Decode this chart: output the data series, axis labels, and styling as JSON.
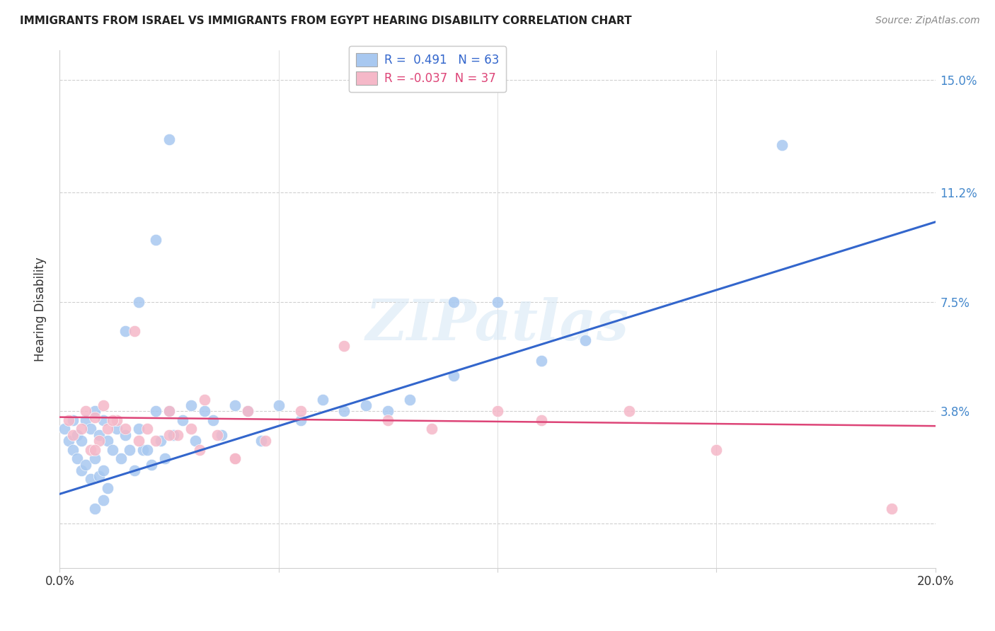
{
  "title": "IMMIGRANTS FROM ISRAEL VS IMMIGRANTS FROM EGYPT HEARING DISABILITY CORRELATION CHART",
  "source": "Source: ZipAtlas.com",
  "ylabel": "Hearing Disability",
  "xlim": [
    0.0,
    0.2
  ],
  "ylim": [
    -0.015,
    0.16
  ],
  "ytick_vals": [
    0.0,
    0.038,
    0.075,
    0.112,
    0.15
  ],
  "ytick_labels": [
    "",
    "3.8%",
    "7.5%",
    "11.2%",
    "15.0%"
  ],
  "xtick_vals": [
    0.0,
    0.05,
    0.1,
    0.15,
    0.2
  ],
  "xtick_labels": [
    "0.0%",
    "",
    "",
    "",
    "20.0%"
  ],
  "israel_R": 0.491,
  "israel_N": 63,
  "egypt_R": -0.037,
  "egypt_N": 37,
  "israel_color": "#a8c8f0",
  "egypt_color": "#f5b8c8",
  "israel_line_color": "#3366cc",
  "egypt_line_color": "#dd4477",
  "background_color": "#ffffff",
  "grid_color": "#d0d0d0",
  "watermark": "ZIPatlas",
  "israel_line_x0": 0.0,
  "israel_line_y0": 0.01,
  "israel_line_x1": 0.2,
  "israel_line_y1": 0.102,
  "egypt_line_x0": 0.0,
  "egypt_line_y0": 0.036,
  "egypt_line_x1": 0.2,
  "egypt_line_y1": 0.033,
  "israel_scatter_x": [
    0.001,
    0.002,
    0.003,
    0.003,
    0.004,
    0.004,
    0.005,
    0.005,
    0.006,
    0.006,
    0.007,
    0.007,
    0.008,
    0.008,
    0.009,
    0.009,
    0.01,
    0.01,
    0.011,
    0.011,
    0.012,
    0.013,
    0.014,
    0.015,
    0.016,
    0.017,
    0.018,
    0.019,
    0.02,
    0.021,
    0.022,
    0.023,
    0.024,
    0.025,
    0.026,
    0.028,
    0.03,
    0.031,
    0.033,
    0.035,
    0.037,
    0.04,
    0.043,
    0.046,
    0.05,
    0.055,
    0.06,
    0.065,
    0.07,
    0.075,
    0.08,
    0.09,
    0.1,
    0.11,
    0.12,
    0.025,
    0.022,
    0.018,
    0.015,
    0.01,
    0.008,
    0.165,
    0.09
  ],
  "israel_scatter_y": [
    0.032,
    0.028,
    0.035,
    0.025,
    0.03,
    0.022,
    0.028,
    0.018,
    0.035,
    0.02,
    0.032,
    0.015,
    0.038,
    0.022,
    0.03,
    0.016,
    0.035,
    0.018,
    0.028,
    0.012,
    0.025,
    0.032,
    0.022,
    0.03,
    0.025,
    0.018,
    0.032,
    0.025,
    0.025,
    0.02,
    0.038,
    0.028,
    0.022,
    0.038,
    0.03,
    0.035,
    0.04,
    0.028,
    0.038,
    0.035,
    0.03,
    0.04,
    0.038,
    0.028,
    0.04,
    0.035,
    0.042,
    0.038,
    0.04,
    0.038,
    0.042,
    0.05,
    0.075,
    0.055,
    0.062,
    0.13,
    0.096,
    0.075,
    0.065,
    0.008,
    0.005,
    0.128,
    0.075
  ],
  "egypt_scatter_x": [
    0.002,
    0.003,
    0.005,
    0.006,
    0.007,
    0.008,
    0.009,
    0.01,
    0.011,
    0.013,
    0.015,
    0.017,
    0.02,
    0.022,
    0.025,
    0.027,
    0.03,
    0.033,
    0.036,
    0.04,
    0.043,
    0.047,
    0.055,
    0.065,
    0.075,
    0.085,
    0.1,
    0.11,
    0.13,
    0.15,
    0.19,
    0.008,
    0.012,
    0.018,
    0.025,
    0.032,
    0.04
  ],
  "egypt_scatter_y": [
    0.035,
    0.03,
    0.032,
    0.038,
    0.025,
    0.036,
    0.028,
    0.04,
    0.032,
    0.035,
    0.032,
    0.065,
    0.032,
    0.028,
    0.038,
    0.03,
    0.032,
    0.042,
    0.03,
    0.022,
    0.038,
    0.028,
    0.038,
    0.06,
    0.035,
    0.032,
    0.038,
    0.035,
    0.038,
    0.025,
    0.005,
    0.025,
    0.035,
    0.028,
    0.03,
    0.025,
    0.022
  ]
}
